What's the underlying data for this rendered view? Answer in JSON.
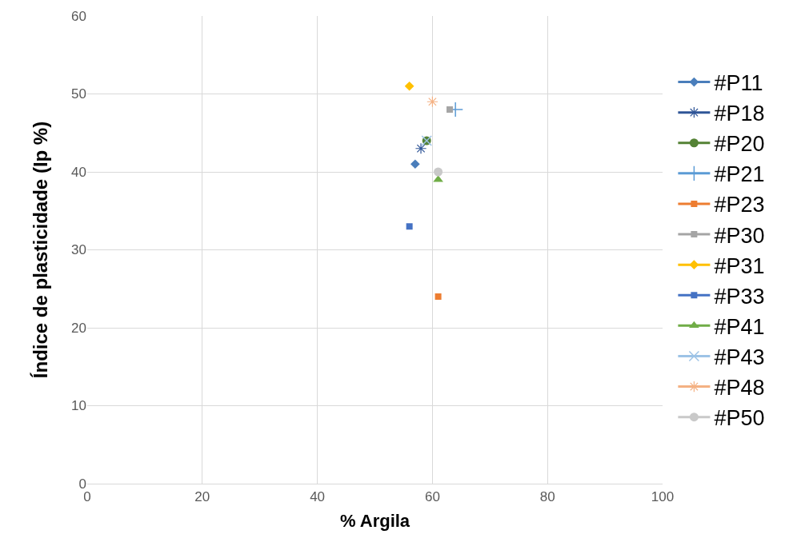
{
  "chart_data": {
    "type": "scatter",
    "xlabel": "% Argila",
    "ylabel": "Índice de plasticidade (Ip %)",
    "xlim": [
      0,
      100
    ],
    "xticks": [
      0,
      20,
      40,
      60,
      80,
      100
    ],
    "ylim": [
      0,
      60
    ],
    "yticks": [
      0,
      10,
      20,
      30,
      40,
      50,
      60
    ],
    "grid": true,
    "legend": "right",
    "line_style": "solid",
    "series": [
      {
        "name": "#P11",
        "color": "#4a7ebb",
        "marker": "diamond",
        "x": [
          57
        ],
        "values": [
          41
        ]
      },
      {
        "name": "#P18",
        "color": "#2f5597",
        "marker": "cross",
        "x": [
          58
        ],
        "values": [
          43
        ]
      },
      {
        "name": "#P20",
        "color": "#548235",
        "marker": "circle",
        "x": [
          59
        ],
        "values": [
          44
        ]
      },
      {
        "name": "#P21",
        "color": "#5b9bd5",
        "marker": "plus",
        "x": [
          64
        ],
        "values": [
          48
        ]
      },
      {
        "name": "#P23",
        "color": "#ed7d31",
        "marker": "square",
        "x": [
          61
        ],
        "values": [
          24
        ]
      },
      {
        "name": "#P30",
        "color": "#a5a5a5",
        "marker": "square",
        "x": [
          63
        ],
        "values": [
          48
        ]
      },
      {
        "name": "#P31",
        "color": "#ffc000",
        "marker": "diamond",
        "x": [
          56
        ],
        "values": [
          51
        ]
      },
      {
        "name": "#P33",
        "color": "#4472c4",
        "marker": "square",
        "x": [
          56
        ],
        "values": [
          33
        ]
      },
      {
        "name": "#P41",
        "color": "#70ad47",
        "marker": "triangle",
        "x": [
          61
        ],
        "values": [
          39
        ]
      },
      {
        "name": "#P43",
        "color": "#9dc3e6",
        "marker": "x",
        "x": [
          59
        ],
        "values": [
          44
        ]
      },
      {
        "name": "#P48",
        "color": "#f4b183",
        "marker": "cross",
        "x": [
          60
        ],
        "values": [
          49
        ]
      },
      {
        "name": "#P50",
        "color": "#c9c9c9",
        "marker": "circle",
        "x": [
          61
        ],
        "values": [
          40
        ]
      }
    ]
  }
}
